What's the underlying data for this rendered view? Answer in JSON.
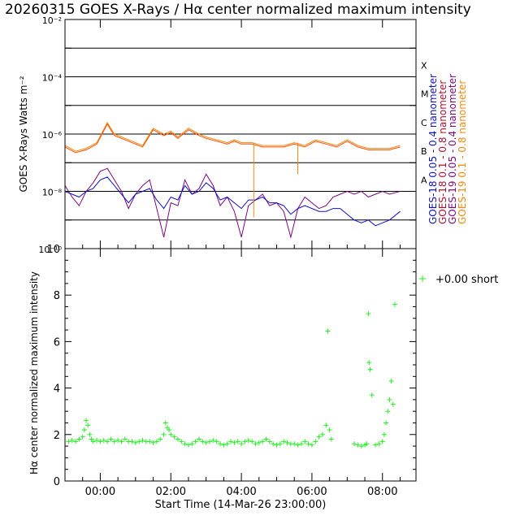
{
  "title": "20260315 GOES X-Rays / Hα center normalized maximum intensity",
  "colors": {
    "goes18_short": "#1010c8",
    "goes18_long": "#b01030",
    "goes19_short": "#7a0a80",
    "goes19_long": "#f08a10",
    "halpha": "#22ee22",
    "flare_red": "#ff4a00"
  },
  "chart_data": [
    {
      "type": "line",
      "title": "GOES X-Rays",
      "ylabel": "GOES X-Rays Watts m⁻²",
      "yscale": "log",
      "ylim": [
        1e-10,
        0.01
      ],
      "y_ticks": [
        "10⁻¹⁰",
        "10⁻⁸",
        "10⁻⁶",
        "10⁻⁴",
        "10⁻²"
      ],
      "flare_classes": [
        "A",
        "B",
        "C",
        "M",
        "X"
      ],
      "legend": [
        "GOES-18 0.05 - 0.4 nanometer",
        "GOES-18 0.1 - 0.8 nanometer",
        "GOES-19 0.05 - 0.4 nanometer",
        "GOES-19 0.1 - 0.8 nanometer"
      ],
      "x_hours_from_start": true,
      "series": [
        {
          "name": "GOES-19 0.1 - 0.8 nanometer",
          "x": [
            0.0,
            0.3,
            0.6,
            0.9,
            1.2,
            1.4,
            1.6,
            1.8,
            2.0,
            2.2,
            2.5,
            2.8,
            3.0,
            3.2,
            3.5,
            3.8,
            4.0,
            4.3,
            4.6,
            4.8,
            5.0,
            5.3,
            5.6,
            5.9,
            6.2,
            6.5,
            6.8,
            7.1,
            7.4,
            7.7,
            8.0,
            8.3,
            8.6,
            8.9,
            9.2,
            9.5
          ],
          "log_y": [
            -6.4,
            -6.6,
            -6.5,
            -6.3,
            -5.6,
            -6.0,
            -6.1,
            -6.2,
            -6.3,
            -6.4,
            -5.8,
            -6.0,
            -5.9,
            -6.1,
            -5.8,
            -6.0,
            -6.1,
            -6.2,
            -6.3,
            -6.2,
            -6.3,
            -6.3,
            -6.4,
            -6.4,
            -6.4,
            -6.3,
            -6.4,
            -6.2,
            -6.3,
            -6.4,
            -6.2,
            -6.4,
            -6.5,
            -6.5,
            -6.5,
            -6.4
          ]
        },
        {
          "name": "GOES-18 0.1 - 0.8 nanometer",
          "x": [
            0.0,
            0.3,
            0.6,
            0.9,
            1.2,
            1.4,
            1.6,
            1.8,
            2.0,
            2.2,
            2.5,
            2.8,
            3.0,
            3.2,
            3.5,
            3.8,
            4.0,
            4.3,
            4.6,
            4.8,
            5.0,
            5.3,
            5.6,
            5.9,
            6.2,
            6.5,
            6.8,
            7.1,
            7.4,
            7.7,
            8.0,
            8.3,
            8.6,
            8.9,
            9.2,
            9.5
          ],
          "log_y": [
            -6.45,
            -6.65,
            -6.55,
            -6.35,
            -5.65,
            -6.05,
            -6.15,
            -6.25,
            -6.35,
            -6.45,
            -5.85,
            -6.05,
            -5.95,
            -6.15,
            -5.85,
            -6.05,
            -6.15,
            -6.25,
            -6.35,
            -6.25,
            -6.35,
            -6.35,
            -6.45,
            -6.45,
            -6.45,
            -6.35,
            -6.45,
            -6.25,
            -6.35,
            -6.45,
            -6.25,
            -6.45,
            -6.55,
            -6.55,
            -6.55,
            -6.45
          ]
        },
        {
          "name": "GOES-19 0.05 - 0.4 nanometer",
          "x": [
            0.0,
            0.2,
            0.4,
            0.6,
            0.8,
            1.0,
            1.2,
            1.4,
            1.6,
            1.8,
            2.0,
            2.2,
            2.4,
            2.6,
            2.8,
            3.0,
            3.2,
            3.4,
            3.6,
            3.8,
            4.0,
            4.2,
            4.4,
            4.6,
            4.8,
            5.0,
            5.2,
            5.4,
            5.6,
            5.8,
            6.0,
            6.2,
            6.4,
            6.6,
            6.8,
            7.0,
            7.2,
            7.4,
            7.6,
            7.8,
            8.0,
            8.2,
            8.4,
            8.6,
            8.8,
            9.0,
            9.2,
            9.5
          ],
          "log_y": [
            -7.8,
            -8.2,
            -8.5,
            -8.0,
            -7.7,
            -7.3,
            -7.2,
            -7.6,
            -8.0,
            -8.6,
            -8.1,
            -7.8,
            -7.6,
            -8.6,
            -9.6,
            -8.4,
            -8.5,
            -7.6,
            -8.1,
            -7.9,
            -7.4,
            -7.8,
            -8.5,
            -8.2,
            -8.7,
            -9.6,
            -8.5,
            -8.3,
            -8.1,
            -8.5,
            -8.4,
            -8.7,
            -9.6,
            -8.6,
            -8.2,
            -8.4,
            -8.6,
            -8.5,
            -8.2,
            -8.1,
            -8.0,
            -8.1,
            -8.0,
            -8.2,
            -8.1,
            -8.0,
            -8.1,
            -8.0
          ]
        },
        {
          "name": "GOES-18 0.05 - 0.4 nanometer",
          "x": [
            0.0,
            0.2,
            0.4,
            0.6,
            0.8,
            1.0,
            1.2,
            1.4,
            1.6,
            1.8,
            2.0,
            2.2,
            2.4,
            2.6,
            2.8,
            3.0,
            3.2,
            3.4,
            3.6,
            3.8,
            4.0,
            4.2,
            4.4,
            4.6,
            4.8,
            5.0,
            5.2,
            5.4,
            5.6,
            5.8,
            6.0,
            6.2,
            6.4,
            6.6,
            6.8,
            7.0,
            7.2,
            7.4,
            7.6,
            7.8,
            8.0,
            8.2,
            8.4,
            8.6,
            8.8,
            9.0,
            9.2,
            9.5
          ],
          "log_y": [
            -8.0,
            -8.1,
            -8.2,
            -8.0,
            -7.9,
            -7.6,
            -7.5,
            -7.8,
            -8.1,
            -8.4,
            -8.1,
            -8.0,
            -7.9,
            -8.3,
            -8.6,
            -8.2,
            -8.3,
            -7.8,
            -8.1,
            -8.0,
            -7.7,
            -7.9,
            -8.3,
            -8.2,
            -8.4,
            -8.6,
            -8.3,
            -8.3,
            -8.2,
            -8.4,
            -8.4,
            -8.5,
            -8.8,
            -8.6,
            -8.5,
            -8.6,
            -8.7,
            -8.7,
            -8.6,
            -8.6,
            -8.8,
            -9.0,
            -9.1,
            -9.0,
            -9.2,
            -9.1,
            -9.0,
            -8.7
          ]
        }
      ]
    },
    {
      "type": "scatter",
      "title": "Hα center normalized maximum intensity",
      "ylabel": "Hα center normalized maximum intensity",
      "xlabel": "Start Time (14-Mar-26 23:00:00)",
      "ylim": [
        0,
        10
      ],
      "y_ticks": [
        "0",
        "2",
        "4",
        "6",
        "8",
        "10"
      ],
      "x_ticks": [
        "00:00",
        "02:00",
        "04:00",
        "06:00",
        "08:00"
      ],
      "x_tick_hours": [
        1,
        3,
        5,
        7,
        9
      ],
      "xlim_hours": [
        0,
        9.95
      ],
      "legend_label": "+0.00 short",
      "series": [
        {
          "name": "Hα",
          "x": [
            0.1,
            0.2,
            0.3,
            0.4,
            0.5,
            0.55,
            0.6,
            0.65,
            0.7,
            0.75,
            0.8,
            0.9,
            1.0,
            1.1,
            1.2,
            1.3,
            1.4,
            1.5,
            1.6,
            1.7,
            1.8,
            1.9,
            2.0,
            2.1,
            2.2,
            2.3,
            2.4,
            2.5,
            2.6,
            2.7,
            2.8,
            2.85,
            2.9,
            2.95,
            3.0,
            3.1,
            3.2,
            3.3,
            3.4,
            3.5,
            3.6,
            3.7,
            3.8,
            3.9,
            4.0,
            4.1,
            4.2,
            4.3,
            4.4,
            4.5,
            4.6,
            4.7,
            4.8,
            4.9,
            5.0,
            5.1,
            5.2,
            5.3,
            5.4,
            5.5,
            5.6,
            5.7,
            5.8,
            5.9,
            6.0,
            6.1,
            6.2,
            6.3,
            6.4,
            6.5,
            6.6,
            6.7,
            6.8,
            6.9,
            7.0,
            7.1,
            7.2,
            7.3,
            7.4,
            7.45,
            7.5,
            7.55,
            8.2,
            8.3,
            8.4,
            8.5,
            8.55,
            8.6,
            8.62,
            8.65,
            8.7,
            8.8,
            8.9,
            9.0,
            9.05,
            9.1,
            9.15,
            9.2,
            9.25,
            9.3,
            9.35
          ],
          "y": [
            1.7,
            1.75,
            1.7,
            1.8,
            1.9,
            2.2,
            2.6,
            2.4,
            2.0,
            1.8,
            1.7,
            1.75,
            1.7,
            1.75,
            1.7,
            1.8,
            1.7,
            1.75,
            1.7,
            1.8,
            1.7,
            1.7,
            1.65,
            1.7,
            1.75,
            1.7,
            1.7,
            1.65,
            1.7,
            1.8,
            2.0,
            2.5,
            2.3,
            2.2,
            2.0,
            1.9,
            1.8,
            1.7,
            1.6,
            1.55,
            1.6,
            1.7,
            1.8,
            1.7,
            1.65,
            1.7,
            1.75,
            1.7,
            1.6,
            1.55,
            1.6,
            1.7,
            1.65,
            1.7,
            1.6,
            1.7,
            1.75,
            1.7,
            1.6,
            1.65,
            1.7,
            1.8,
            1.7,
            1.6,
            1.55,
            1.6,
            1.7,
            1.65,
            1.6,
            1.6,
            1.55,
            1.6,
            1.7,
            1.6,
            1.55,
            1.7,
            1.9,
            2.0,
            2.4,
            6.45,
            2.2,
            1.8,
            1.6,
            1.55,
            1.5,
            1.55,
            1.6,
            7.2,
            5.1,
            4.8,
            3.7,
            1.55,
            1.6,
            1.7,
            2.0,
            2.5,
            3.0,
            3.5,
            4.3,
            3.3,
            7.6
          ]
        }
      ]
    }
  ]
}
